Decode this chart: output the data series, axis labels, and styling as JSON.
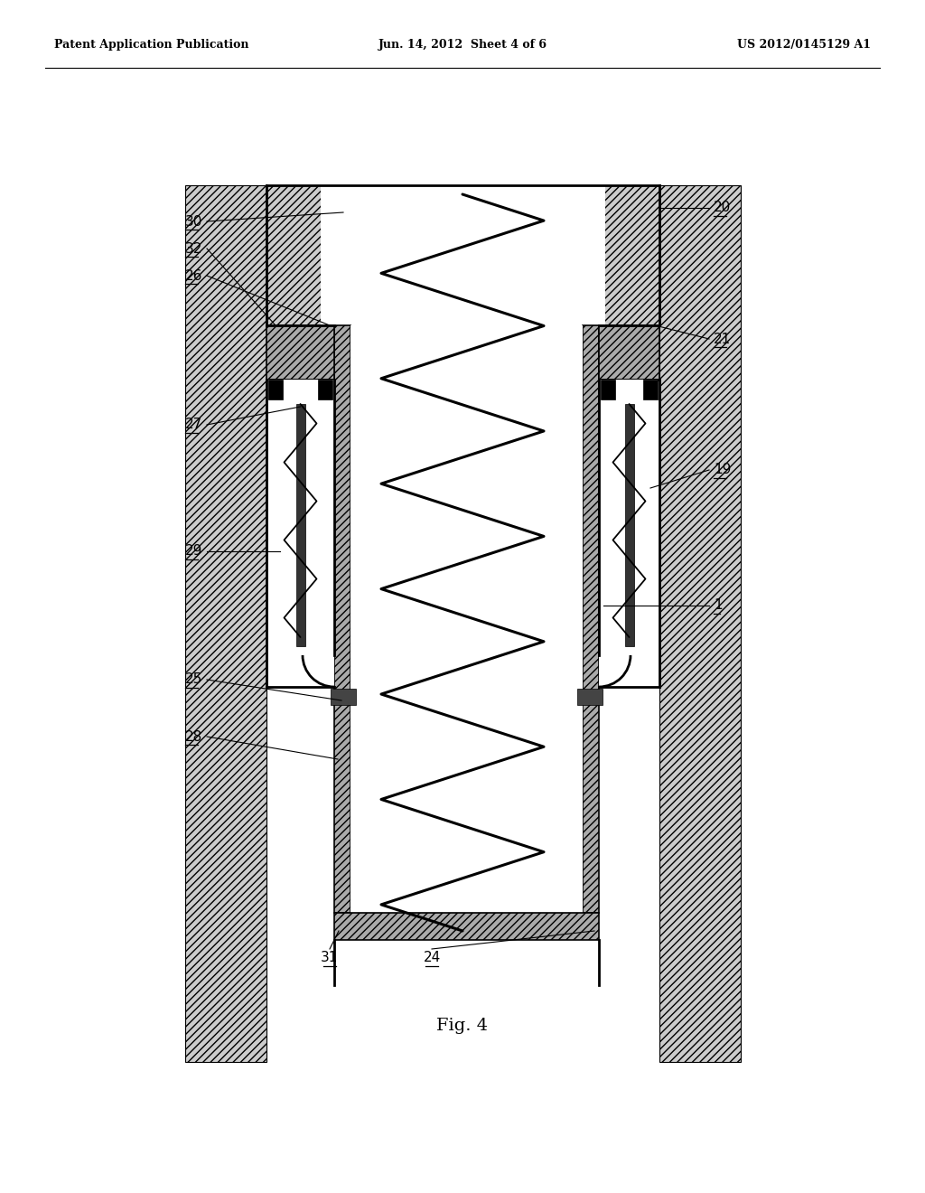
{
  "bg_color": "#ffffff",
  "header_left": "Patent Application Publication",
  "header_center": "Jun. 14, 2012  Sheet 4 of 6",
  "header_right": "US 2012/0145129 A1",
  "fig_label": "Fig. 4",
  "black": "#000000",
  "hatch_face": "#cccccc",
  "wall_face": "#aaaaaa",
  "lw_thick": 2.0,
  "lw_med": 1.2,
  "lw_thin": 0.7,
  "label_fontsize": 11,
  "header_fontsize": 9,
  "fig_fontsize": 14
}
